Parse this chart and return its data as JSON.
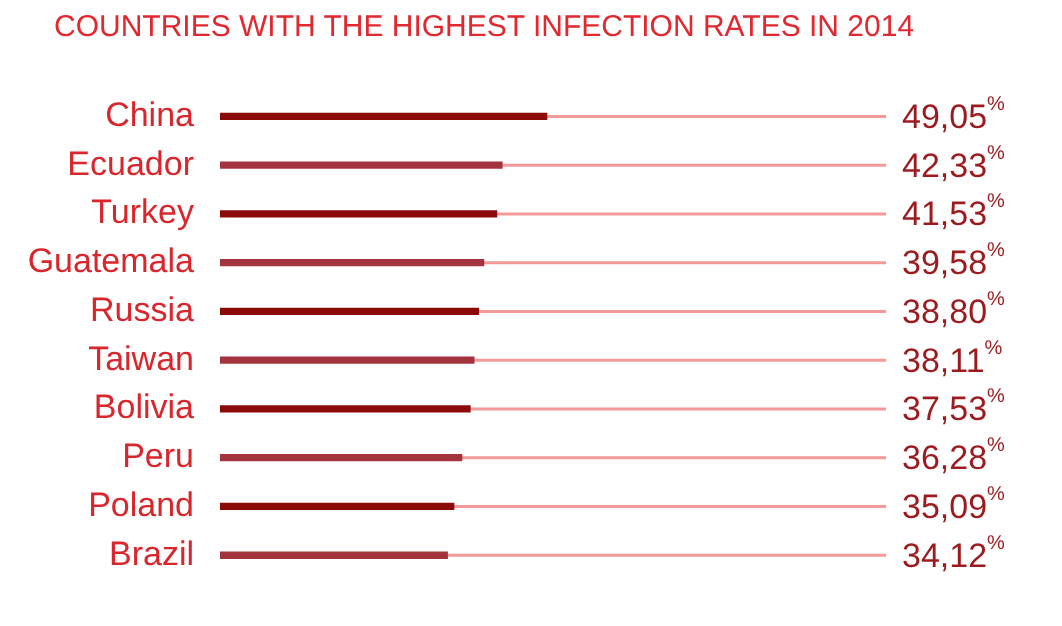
{
  "chart_data": {
    "type": "bar",
    "orientation": "horizontal",
    "title": "COUNTRIES WITH THE HIGHEST INFECTION RATES IN 2014",
    "categories": [
      "China",
      "Ecuador",
      "Turkey",
      "Guatemala",
      "Russia",
      "Taiwan",
      "Bolivia",
      "Peru",
      "Poland",
      "Brazil"
    ],
    "values": [
      49.05,
      42.33,
      41.53,
      39.58,
      38.8,
      38.11,
      37.53,
      36.28,
      35.09,
      34.12
    ],
    "colors": [
      "#8b0a0a",
      "#a3343d",
      "#8b0a0a",
      "#a3343d",
      "#8b0a0a",
      "#a3343d",
      "#8b0a0a",
      "#a3343d",
      "#8b0a0a",
      "#a3343d"
    ],
    "value_labels": [
      "49,05$^{%}$",
      "42,33$^{%}$",
      "41,53$^{%}$",
      "39,58$^{%}$",
      "38,80$^{%}$",
      "38,11$^{%}$",
      "37,53$^{%}$",
      "36,28$^{%}$",
      "35,09$^{%}$",
      "34,12$^{%}$"
    ],
    "xlim": [
      0,
      100
    ],
    "tick_labels": "y",
    "grid": false,
    "legend": false
  }
}
